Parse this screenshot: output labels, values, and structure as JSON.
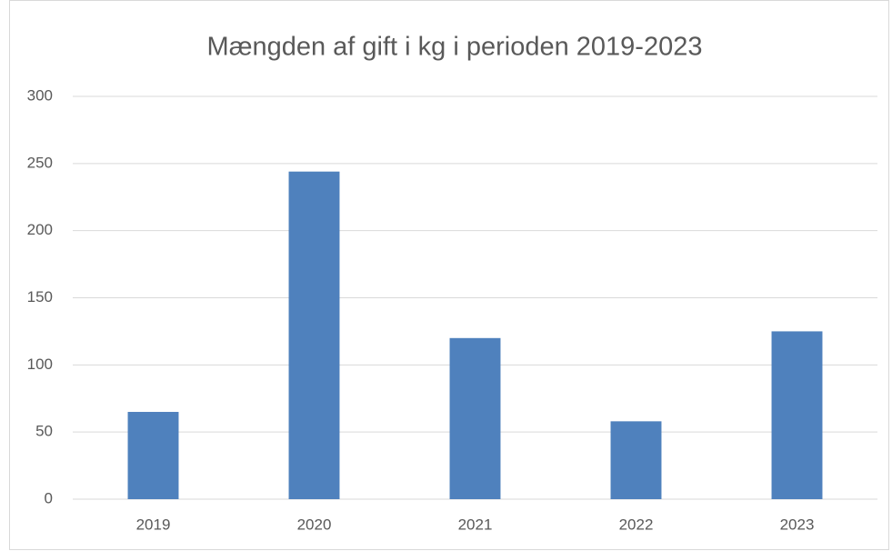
{
  "chart_data": {
    "type": "bar",
    "title": "Mængden af gift i kg i perioden 2019-2023",
    "categories": [
      "2019",
      "2020",
      "2021",
      "2022",
      "2023"
    ],
    "values": [
      65,
      244,
      120,
      58,
      125
    ],
    "color": "#4f81bd",
    "ylim": [
      0,
      300
    ],
    "yticks": [
      0,
      50,
      100,
      150,
      200,
      250,
      300
    ],
    "grid": true
  }
}
